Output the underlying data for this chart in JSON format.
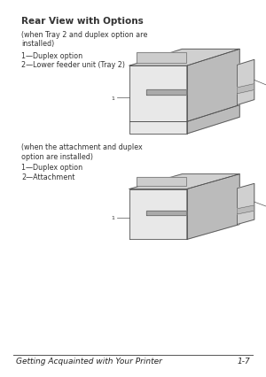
{
  "background_color": "#ffffff",
  "page_width": 3.0,
  "page_height": 4.27,
  "title": "Rear View with Options",
  "subtitle1": "(when Tray 2 and duplex option are\ninstalled)",
  "label1_1": "1—Duplex option",
  "label1_2": "2—Lower feeder unit (Tray 2)",
  "subtitle2": "(when the attachment and duplex\noption are installed)",
  "label2_1": "1—Duplex option",
  "label2_2": "2—Attachment",
  "footer_text": "Getting Acquainted with Your Printer",
  "footer_right": "1-7",
  "text_color": "#333333",
  "footer_color": "#222222",
  "line_color": "#555555",
  "title_fontsize": 7.5,
  "body_fontsize": 5.8,
  "footer_fontsize": 6.5
}
